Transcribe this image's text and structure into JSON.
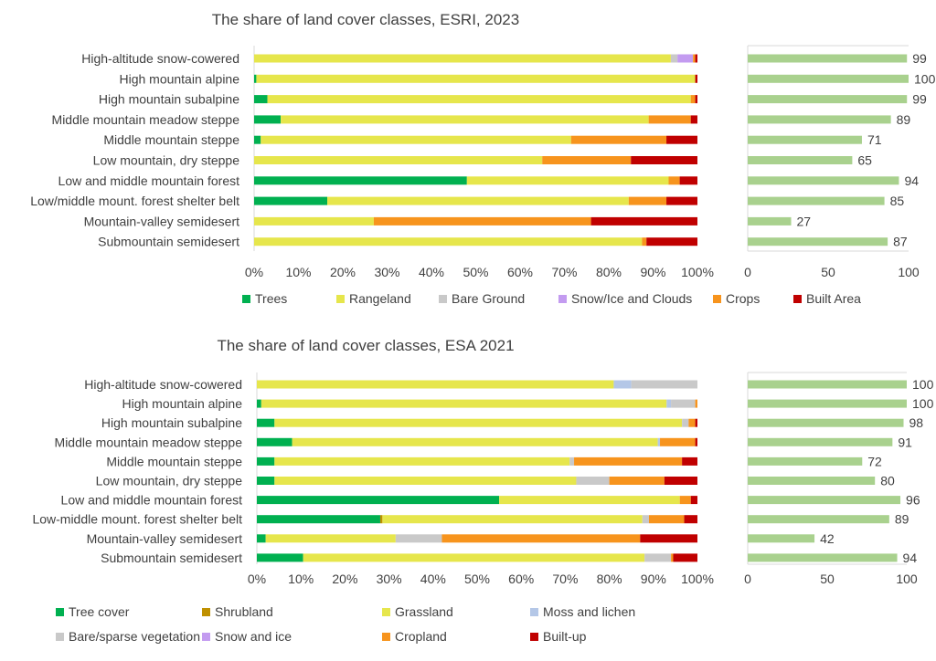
{
  "chart_data": [
    {
      "type": "bar",
      "orientation": "horizontal",
      "stacked": true,
      "percent": true,
      "title": "The share of land cover classes, ESRI, 2023",
      "categories": [
        "High-altitude snow-cowered",
        "High mountain alpine",
        "High mountain subalpine",
        "Middle mountain meadow steppe ",
        "Middle mountain steppe",
        "Low mountain, dry steppe",
        "Low and middle mountain forest",
        "Low/middle mount. forest shelter belt",
        "Mountain-valley semidesert",
        "Submountain semidesert"
      ],
      "series": [
        {
          "name": "Trees",
          "color": "#00b050",
          "values": [
            0,
            0.5,
            3,
            6,
            1.5,
            0,
            48,
            16.5,
            0,
            0
          ]
        },
        {
          "name": "Rangeland",
          "color": "#e6e64c",
          "values": [
            94,
            99,
            95.5,
            83,
            70,
            65,
            45.5,
            68,
            27,
            87.5
          ]
        },
        {
          "name": "Bare Ground",
          "color": "#c9c9c9",
          "values": [
            1.5,
            0,
            0,
            0,
            0,
            0,
            0,
            0,
            0,
            0
          ]
        },
        {
          "name": "Snow/Ice and Clouds",
          "color": "#c39bf0",
          "values": [
            3.5,
            0,
            0,
            0,
            0,
            0,
            0,
            0,
            0,
            0
          ]
        },
        {
          "name": "Crops",
          "color": "#f7941d",
          "values": [
            0.5,
            0,
            1,
            9.5,
            21.5,
            20,
            2.5,
            8.5,
            49,
            1
          ]
        },
        {
          "name": "Built Area",
          "color": "#c00000",
          "values": [
            0.5,
            0.5,
            0.5,
            1.5,
            7,
            15,
            4,
            7,
            24,
            11.5
          ]
        }
      ],
      "xlim": [
        0,
        100
      ],
      "xticks": [
        "0%",
        "10%",
        "20%",
        "30%",
        "40%",
        "50%",
        "60%",
        "70%",
        "80%",
        "90%",
        "100%"
      ],
      "legend": "bottom",
      "side_panel": {
        "type": "bar",
        "color": "#a9d18e",
        "values": [
          99,
          100,
          99,
          89,
          71,
          65,
          94,
          85,
          27,
          87
        ],
        "xlim": [
          0,
          100
        ],
        "xticks": [
          "0",
          "50",
          "100"
        ]
      }
    },
    {
      "type": "bar",
      "orientation": "horizontal",
      "stacked": true,
      "percent": true,
      "title": "The share of land cover classes, ESA 2021",
      "categories": [
        "High-altitude snow-cowered",
        "High mountain alpine",
        "High mountain subalpine",
        "Middle mountain meadow steppe",
        "Middle mountain steppe",
        "Low mountain, dry steppe",
        "Low and middle mountain forest",
        "Low-middle mount. forest shelter belt",
        "Mountain-valley semidesert",
        "Submountain semidesert"
      ],
      "series": [
        {
          "name": "Tree cover",
          "color": "#00b050",
          "values": [
            0,
            1,
            4,
            8,
            4,
            4,
            55,
            28,
            2,
            10.5
          ]
        },
        {
          "name": "Shrubland",
          "color": "#bf9000",
          "values": [
            0,
            0,
            0,
            0,
            0,
            0,
            0,
            0.5,
            0,
            0
          ]
        },
        {
          "name": "Grassland",
          "color": "#e6e64c",
          "values": [
            81,
            92,
            92.5,
            83,
            67,
            68.5,
            41,
            59,
            29.5,
            77.5
          ]
        },
        {
          "name": "Moss and lichen",
          "color": "#b4c7e7",
          "values": [
            4,
            1,
            0,
            0.5,
            0,
            0,
            0,
            0,
            0,
            0
          ]
        },
        {
          "name": "Bare/sparse vegetation",
          "color": "#c9c9c9",
          "values": [
            15,
            5.5,
            1.5,
            0,
            1,
            7.5,
            0,
            1.5,
            10.5,
            6
          ]
        },
        {
          "name": "Snow and ice",
          "color": "#c39bf0",
          "values": [
            0,
            0,
            0,
            0,
            0,
            0,
            0,
            0,
            0,
            0
          ]
        },
        {
          "name": "Cropland",
          "color": "#f7941d",
          "values": [
            0,
            0.5,
            1.5,
            8,
            24.5,
            12.5,
            2.5,
            8,
            45,
            0.5
          ]
        },
        {
          "name": "Built-up",
          "color": "#c00000",
          "values": [
            0,
            0,
            0.5,
            0.5,
            3.5,
            7.5,
            1.5,
            3,
            13,
            5.5
          ]
        }
      ],
      "xlim": [
        0,
        100
      ],
      "xticks": [
        "0%",
        "10%",
        "20%",
        "30%",
        "40%",
        "50%",
        "60%",
        "70%",
        "80%",
        "90%",
        "100%"
      ],
      "legend": "bottom",
      "side_panel": {
        "type": "bar",
        "color": "#a9d18e",
        "values": [
          100,
          100,
          98,
          91,
          72,
          80,
          96,
          89,
          42,
          94
        ],
        "xlim": [
          0,
          100
        ],
        "xticks": [
          "0",
          "50",
          "100"
        ]
      }
    }
  ]
}
